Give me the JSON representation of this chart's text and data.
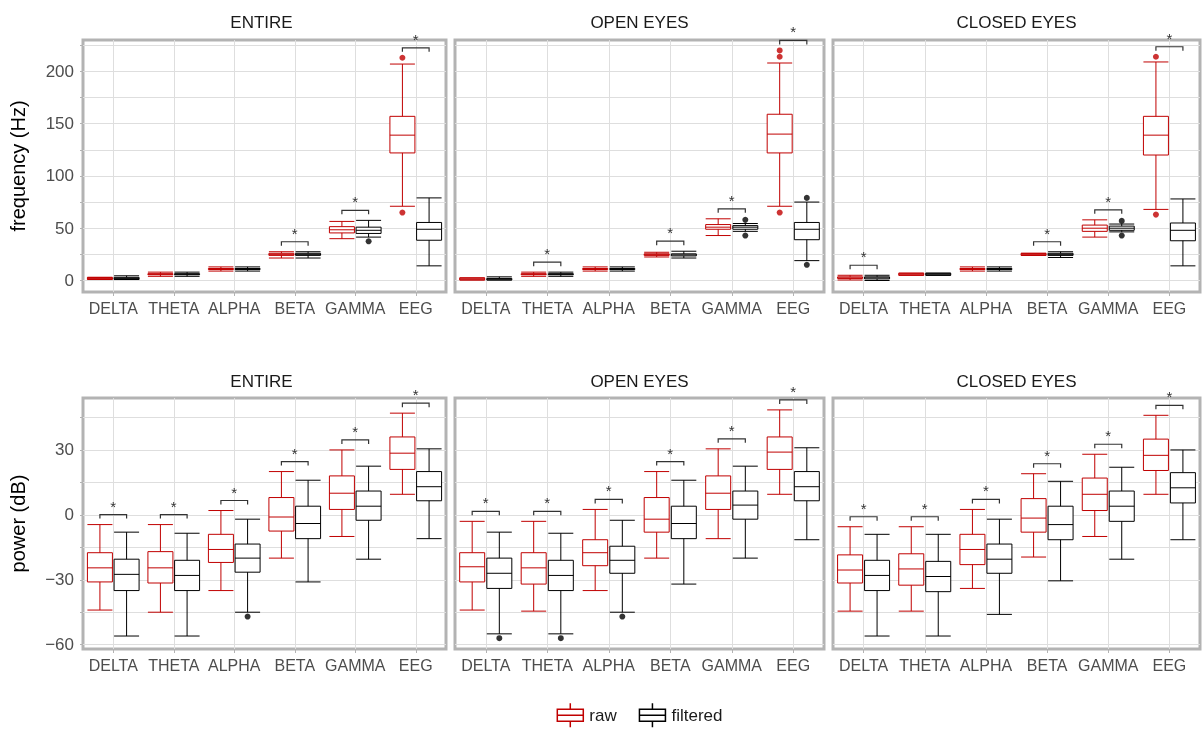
{
  "chart_data": [
    {
      "type": "box",
      "title": "ENTIRE",
      "ylabel": "frequency (Hz)",
      "categories": [
        "DELTA",
        "THETA",
        "ALPHA",
        "BETA",
        "GAMMA",
        "EEG"
      ],
      "series": [
        {
          "color": "#c00000",
          "boxes": [
            {
              "low": 1,
              "q1": 1,
              "median": 2,
              "q3": 3,
              "high": 3
            },
            {
              "low": 4,
              "q1": 5.5,
              "median": 6,
              "q3": 6.5,
              "high": 8
            },
            {
              "low": 9,
              "q1": 10.5,
              "median": 11,
              "q3": 11.5,
              "high": 13
            },
            {
              "low": 21.5,
              "q1": 24,
              "median": 25,
              "q3": 26,
              "high": 27.5
            },
            {
              "low": 40,
              "q1": 45.5,
              "median": 48.5,
              "q3": 51.5,
              "high": 56.5
            },
            {
              "low": 71,
              "q1": 122,
              "median": 139,
              "q3": 157,
              "high": 207,
              "outliers": [
                65,
                213
              ]
            }
          ]
        },
        {
          "color": "#000000",
          "boxes": [
            {
              "low": 1,
              "q1": 1,
              "median": 2,
              "q3": 3,
              "high": 4.5
            },
            {
              "low": 4,
              "q1": 5.5,
              "median": 6,
              "q3": 6.5,
              "high": 8
            },
            {
              "low": 9,
              "q1": 10.5,
              "median": 11,
              "q3": 11.5,
              "high": 13
            },
            {
              "low": 21.5,
              "q1": 24,
              "median": 25,
              "q3": 26,
              "high": 27.5
            },
            {
              "low": 41.5,
              "q1": 45,
              "median": 48,
              "q3": 51,
              "high": 57.5,
              "outliers": [
                37.5
              ]
            },
            {
              "low": 14,
              "q1": 38.5,
              "median": 49,
              "q3": 55.5,
              "high": 79
            }
          ]
        }
      ],
      "ylim": [
        -11,
        230
      ],
      "yticks": [
        0,
        {
          "value": 25,
          "label": null
        },
        50,
        {
          "value": 75,
          "label": null
        },
        100,
        {
          "value": 125,
          "label": null
        },
        150,
        {
          "value": 175,
          "label": null
        },
        200,
        {
          "value": 225,
          "label": null
        }
      ],
      "grid": true,
      "annotations": [
        {
          "text": "*",
          "x": "BETA",
          "y": 27.5
        },
        {
          "text": "*",
          "x": "GAMMA",
          "y": 57.5
        },
        {
          "text": "*",
          "x": "EEG",
          "y": 207
        }
      ]
    },
    {
      "type": "box",
      "title": "OPEN EYES",
      "categories": [
        "DELTA",
        "THETA",
        "ALPHA",
        "BETA",
        "GAMMA",
        "EEG"
      ],
      "series": [
        {
          "color": "#c00000",
          "boxes": [
            {
              "low": 0.5,
              "q1": 0.5,
              "median": 1.5,
              "q3": 2.5,
              "high": 2.5
            },
            {
              "low": 4,
              "q1": 5.5,
              "median": 6,
              "q3": 6.5,
              "high": 8
            },
            {
              "low": 9,
              "q1": 10.5,
              "median": 11,
              "q3": 11.5,
              "high": 13
            },
            {
              "low": 22.5,
              "q1": 24,
              "median": 25,
              "q3": 25.5,
              "high": 27
            },
            {
              "low": 43,
              "q1": 49,
              "median": 51,
              "q3": 53.5,
              "high": 59
            },
            {
              "low": 71,
              "q1": 122,
              "median": 140,
              "q3": 159,
              "high": 208,
              "outliers": [
                65,
                214,
                220
              ]
            }
          ]
        },
        {
          "color": "#000000",
          "boxes": [
            {
              "low": 0.5,
              "q1": 0.5,
              "median": 1.5,
              "q3": 2,
              "high": 3.5
            },
            {
              "low": 4,
              "q1": 5.5,
              "median": 6,
              "q3": 6.5,
              "high": 8
            },
            {
              "low": 9,
              "q1": 10.5,
              "median": 11,
              "q3": 11.5,
              "high": 13
            },
            {
              "low": 21.5,
              "q1": 23.5,
              "median": 24.5,
              "q3": 25.5,
              "high": 28
            },
            {
              "low": 47,
              "q1": 49,
              "median": 51,
              "q3": 52.5,
              "high": 54.5,
              "outliers": [
                43,
                58
              ]
            },
            {
              "low": 19,
              "q1": 39,
              "median": 49,
              "q3": 55.5,
              "high": 75,
              "outliers": [
                15,
                79
              ]
            }
          ]
        }
      ],
      "ylim": [
        -11,
        230
      ],
      "yticks": [
        0,
        25,
        50,
        75,
        100,
        125,
        150,
        175,
        200,
        225
      ],
      "grid": true,
      "tick_labels": "x",
      "annotations": [
        {
          "text": "*",
          "x": "THETA",
          "y": 8
        },
        {
          "text": "*",
          "x": "BETA",
          "y": 28
        },
        {
          "text": "*",
          "x": "GAMMA",
          "y": 59
        },
        {
          "text": "*",
          "x": "EEG",
          "y": 208
        }
      ]
    },
    {
      "type": "box",
      "title": "CLOSED EYES",
      "categories": [
        "DELTA",
        "THETA",
        "ALPHA",
        "BETA",
        "GAMMA",
        "EEG"
      ],
      "series": [
        {
          "color": "#c00000",
          "boxes": [
            {
              "low": 0.5,
              "q1": 2,
              "median": 2.5,
              "q3": 3.5,
              "high": 5
            },
            {
              "low": 5,
              "q1": 5,
              "median": 6,
              "q3": 7,
              "high": 7
            },
            {
              "low": 9,
              "q1": 10.5,
              "median": 11,
              "q3": 11.5,
              "high": 13
            },
            {
              "low": 24,
              "q1": 24,
              "median": 25,
              "q3": 26,
              "high": 26
            },
            {
              "low": 41.5,
              "q1": 47,
              "median": 50,
              "q3": 53,
              "high": 58
            },
            {
              "low": 68,
              "q1": 120,
              "median": 139,
              "q3": 157,
              "high": 209,
              "outliers": [
                63,
                214
              ]
            }
          ]
        },
        {
          "color": "#000000",
          "boxes": [
            {
              "low": 0,
              "q1": 1.5,
              "median": 2.5,
              "q3": 3.5,
              "high": 5
            },
            {
              "low": 5,
              "q1": 5,
              "median": 6,
              "q3": 7,
              "high": 7
            },
            {
              "low": 9,
              "q1": 10.5,
              "median": 11,
              "q3": 11.5,
              "high": 13
            },
            {
              "low": 22,
              "q1": 24,
              "median": 25,
              "q3": 26,
              "high": 27.5
            },
            {
              "low": 46.5,
              "q1": 48,
              "median": 50,
              "q3": 52,
              "high": 54,
              "outliers": [
                43,
                57
              ]
            },
            {
              "low": 14,
              "q1": 38,
              "median": 48,
              "q3": 55,
              "high": 78
            }
          ]
        }
      ],
      "ylim": [
        -11,
        230
      ],
      "yticks": [
        0,
        25,
        50,
        75,
        100,
        125,
        150,
        175,
        200,
        225
      ],
      "grid": true,
      "tick_labels": "x",
      "annotations": [
        {
          "text": "*",
          "x": "DELTA",
          "y": 5
        },
        {
          "text": "*",
          "x": "BETA",
          "y": 27.5
        },
        {
          "text": "*",
          "x": "GAMMA",
          "y": 58
        },
        {
          "text": "*",
          "x": "EEG",
          "y": 209
        }
      ]
    },
    {
      "type": "box",
      "title": "ENTIRE",
      "ylabel": "power (dB)",
      "categories": [
        "DELTA",
        "THETA",
        "ALPHA",
        "BETA",
        "GAMMA",
        "EEG"
      ],
      "series": [
        {
          "color": "#c00000",
          "boxes": [
            {
              "low": -44,
              "q1": -31,
              "median": -24.5,
              "q3": -17.5,
              "high": -4.5
            },
            {
              "low": -45,
              "q1": -31.5,
              "median": -24.5,
              "q3": -17,
              "high": -4.5
            },
            {
              "low": -35,
              "q1": -22,
              "median": -16,
              "q3": -9,
              "high": 2
            },
            {
              "low": -20,
              "q1": -7.5,
              "median": -1,
              "q3": 8,
              "high": 20
            },
            {
              "low": -10,
              "q1": 2.5,
              "median": 10,
              "q3": 18,
              "high": 30
            },
            {
              "low": 9.5,
              "q1": 21,
              "median": 28.5,
              "q3": 36,
              "high": 47
            }
          ]
        },
        {
          "color": "#000000",
          "boxes": [
            {
              "low": -56,
              "q1": -35,
              "median": -27.5,
              "q3": -20.5,
              "high": -8
            },
            {
              "low": -56,
              "q1": -35,
              "median": -28,
              "q3": -21,
              "high": -8.5
            },
            {
              "low": -45,
              "q1": -26.5,
              "median": -20,
              "q3": -13.5,
              "high": -2,
              "outliers": [
                -47
              ]
            },
            {
              "low": -31,
              "q1": -11,
              "median": -4,
              "q3": 4,
              "high": 16
            },
            {
              "low": -20.5,
              "q1": -2.5,
              "median": 4,
              "q3": 11,
              "high": 22.5
            },
            {
              "low": -11,
              "q1": 6.5,
              "median": 13,
              "q3": 20,
              "high": 30.5
            }
          ]
        }
      ],
      "ylim": [
        -62,
        54
      ],
      "yticks": [
        {
          "value": -60,
          "label": "−60"
        },
        {
          "value": -45,
          "label": null
        },
        {
          "value": -30,
          "label": "−30"
        },
        {
          "value": -15,
          "label": null
        },
        0,
        {
          "value": 15,
          "label": null
        },
        30,
        {
          "value": 45,
          "label": null
        }
      ],
      "grid": true,
      "annotations": [
        {
          "text": "*",
          "x": "DELTA",
          "y": -4.5
        },
        {
          "text": "*",
          "x": "THETA",
          "y": -4.5
        },
        {
          "text": "*",
          "x": "ALPHA",
          "y": 2
        },
        {
          "text": "*",
          "x": "BETA",
          "y": 20
        },
        {
          "text": "*",
          "x": "GAMMA",
          "y": 30
        },
        {
          "text": "*",
          "x": "EEG",
          "y": 47
        }
      ]
    },
    {
      "type": "box",
      "title": "OPEN EYES",
      "categories": [
        "DELTA",
        "THETA",
        "ALPHA",
        "BETA",
        "GAMMA",
        "EEG"
      ],
      "series": [
        {
          "name": "raw",
          "color": "#c00000",
          "boxes": [
            {
              "low": -44,
              "q1": -31,
              "median": -24,
              "q3": -17.5,
              "high": -3
            },
            {
              "low": -44.5,
              "q1": -32,
              "median": -24.5,
              "q3": -17.5,
              "high": -3
            },
            {
              "low": -35,
              "q1": -23.5,
              "median": -17.5,
              "q3": -11.5,
              "high": 2.5
            },
            {
              "low": -20,
              "q1": -8,
              "median": -2,
              "q3": 8,
              "high": 20
            },
            {
              "low": -11,
              "q1": 2.5,
              "median": 10,
              "q3": 18,
              "high": 30.5
            },
            {
              "low": 9.5,
              "q1": 21,
              "median": 29,
              "q3": 36,
              "high": 48.5
            }
          ]
        },
        {
          "name": "filtered",
          "color": "#000000",
          "boxes": [
            {
              "low": -55,
              "q1": -34,
              "median": -27,
              "q3": -20,
              "high": -8,
              "outliers": [
                -57
              ]
            },
            {
              "low": -55,
              "q1": -35,
              "median": -28,
              "q3": -21,
              "high": -8.5,
              "outliers": [
                -57
              ]
            },
            {
              "low": -45,
              "q1": -27,
              "median": -21,
              "q3": -14.5,
              "high": -2.5,
              "outliers": [
                -47
              ]
            },
            {
              "low": -32,
              "q1": -11,
              "median": -4,
              "q3": 4,
              "high": 16
            },
            {
              "low": -20,
              "q1": -2,
              "median": 4.5,
              "q3": 11,
              "high": 22.5
            },
            {
              "low": -11.5,
              "q1": 6.5,
              "median": 13,
              "q3": 20,
              "high": 31
            }
          ]
        }
      ],
      "ylim": [
        -62,
        54
      ],
      "yticks": [
        -60,
        -45,
        -30,
        -15,
        0,
        15,
        30,
        45
      ],
      "grid": true,
      "tick_labels": "x",
      "legend": "bottom",
      "annotations": [
        {
          "text": "*",
          "x": "DELTA",
          "y": -3
        },
        {
          "text": "*",
          "x": "THETA",
          "y": -3
        },
        {
          "text": "*",
          "x": "ALPHA",
          "y": 2.5
        },
        {
          "text": "*",
          "x": "BETA",
          "y": 20
        },
        {
          "text": "*",
          "x": "GAMMA",
          "y": 30.5
        },
        {
          "text": "*",
          "x": "EEG",
          "y": 48.5
        }
      ]
    },
    {
      "type": "box",
      "title": "CLOSED EYES",
      "categories": [
        "DELTA",
        "THETA",
        "ALPHA",
        "BETA",
        "GAMMA",
        "EEG"
      ],
      "series": [
        {
          "color": "#c00000",
          "boxes": [
            {
              "low": -44.5,
              "q1": -31.5,
              "median": -25.5,
              "q3": -18.5,
              "high": -5.5
            },
            {
              "low": -44.5,
              "q1": -32.5,
              "median": -25,
              "q3": -18,
              "high": -5.5
            },
            {
              "low": -34,
              "q1": -23,
              "median": -16,
              "q3": -9,
              "high": 2.5
            },
            {
              "low": -19.5,
              "q1": -8,
              "median": -1.5,
              "q3": 7.5,
              "high": 19
            },
            {
              "low": -10,
              "q1": 2,
              "median": 9.5,
              "q3": 17,
              "high": 28
            },
            {
              "low": 9.5,
              "q1": 20.5,
              "median": 27.5,
              "q3": 35,
              "high": 46
            }
          ]
        },
        {
          "color": "#000000",
          "boxes": [
            {
              "low": -56,
              "q1": -35,
              "median": -28,
              "q3": -21,
              "high": -9
            },
            {
              "low": -56,
              "q1": -35.5,
              "median": -28.5,
              "q3": -21.5,
              "high": -9
            },
            {
              "low": -46,
              "q1": -27,
              "median": -20.5,
              "q3": -13.5,
              "high": -2
            },
            {
              "low": -30.5,
              "q1": -11.5,
              "median": -4.5,
              "q3": 4,
              "high": 15.5
            },
            {
              "low": -20.5,
              "q1": -3,
              "median": 4,
              "q3": 11,
              "high": 22
            },
            {
              "low": -11.5,
              "q1": 5.5,
              "median": 12.5,
              "q3": 19.5,
              "high": 30
            }
          ]
        }
      ],
      "ylim": [
        -62,
        54
      ],
      "yticks": [
        -60,
        -45,
        -30,
        -15,
        0,
        15,
        30,
        45
      ],
      "grid": true,
      "tick_labels": "x",
      "annotations": [
        {
          "text": "*",
          "x": "DELTA",
          "y": -5.5
        },
        {
          "text": "*",
          "x": "THETA",
          "y": -5.5
        },
        {
          "text": "*",
          "x": "ALPHA",
          "y": 2.5
        },
        {
          "text": "*",
          "x": "BETA",
          "y": 19
        },
        {
          "text": "*",
          "x": "GAMMA",
          "y": 28
        },
        {
          "text": "*",
          "x": "EEG",
          "y": 46
        }
      ]
    }
  ]
}
